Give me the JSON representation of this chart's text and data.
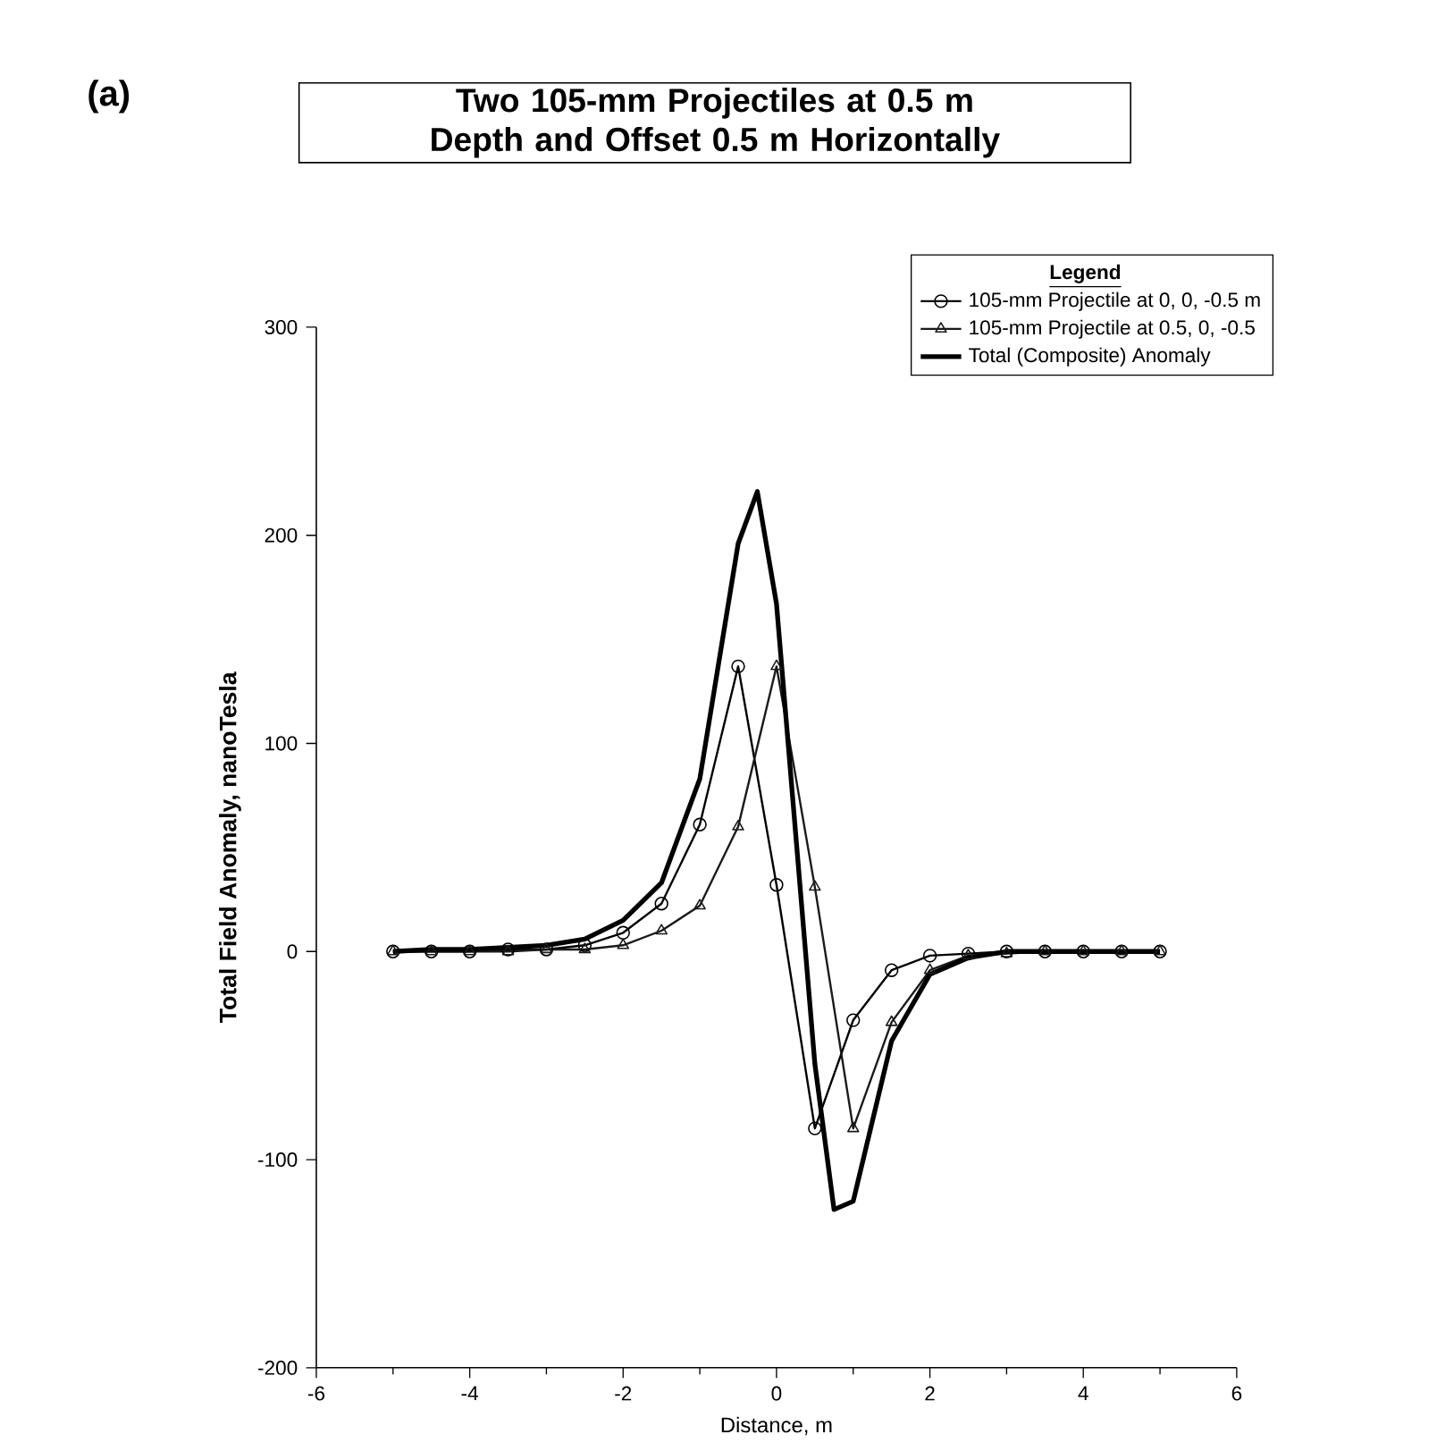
{
  "chart_data": {
    "type": "line",
    "title": "Two 105-mm Projectiles at 0.5 m Depth and Offset 0.5 m Horizontally",
    "xlabel": "Distance, m",
    "ylabel": "Total Field Anomaly, nanoTesla",
    "legend_title": "Legend",
    "annotations": [
      "(a)"
    ],
    "xlim": [
      -6,
      6
    ],
    "ylim": [
      -200,
      300
    ],
    "xticks": [
      -6,
      -4,
      -2,
      0,
      2,
      4,
      6
    ],
    "yticks": [
      -200,
      -100,
      0,
      100,
      200,
      300
    ],
    "grid": false,
    "legend": "top right",
    "line_style": "solid",
    "series": [
      {
        "name": "105-mm Projectile at 0, 0, -0.5 m",
        "color": "#000000",
        "marker": "circle",
        "x": [
          -5,
          -4.5,
          -4,
          -3.5,
          -3,
          -2.5,
          -2,
          -1.5,
          -1,
          -0.5,
          0,
          0.5,
          1,
          1.5,
          2,
          2.5,
          3,
          3.5,
          4,
          4.5,
          5
        ],
        "values": [
          0,
          0,
          0,
          1,
          1,
          3,
          9,
          23,
          61,
          137,
          32,
          -85,
          -33,
          -9,
          -2,
          -1,
          0,
          0,
          0,
          0,
          0
        ]
      },
      {
        "name": "105-mm Projectile at 0.5, 0, -0.5",
        "color": "#1a1a1a",
        "marker": "triangle",
        "x": [
          -5,
          -4.5,
          -4,
          -3.5,
          -3,
          -2.5,
          -2,
          -1.5,
          -1,
          -0.5,
          0,
          0.5,
          1,
          1.5,
          2,
          2.5,
          3,
          3.5,
          4,
          4.5,
          5
        ],
        "values": [
          0,
          0,
          0,
          0,
          1,
          1,
          3,
          10,
          22,
          60,
          137,
          31,
          -85,
          -34,
          -9,
          -2,
          -1,
          0,
          0,
          0,
          0
        ]
      },
      {
        "name": "Total (Composite) Anomaly",
        "color": "#000000",
        "marker": "none",
        "x": [
          -5,
          -4.5,
          -4,
          -3.5,
          -3,
          -2.5,
          -2,
          -1.5,
          -1,
          -0.5,
          -0.25,
          0,
          0.5,
          0.75,
          1,
          1.5,
          2,
          2.5,
          3,
          3.5,
          4,
          4.5,
          5
        ],
        "values": [
          0,
          1,
          1,
          2,
          3,
          6,
          15,
          33,
          83,
          196,
          221,
          167,
          -54,
          -124,
          -120,
          -43,
          -11,
          -3,
          0,
          0,
          0,
          0,
          0
        ]
      }
    ]
  }
}
